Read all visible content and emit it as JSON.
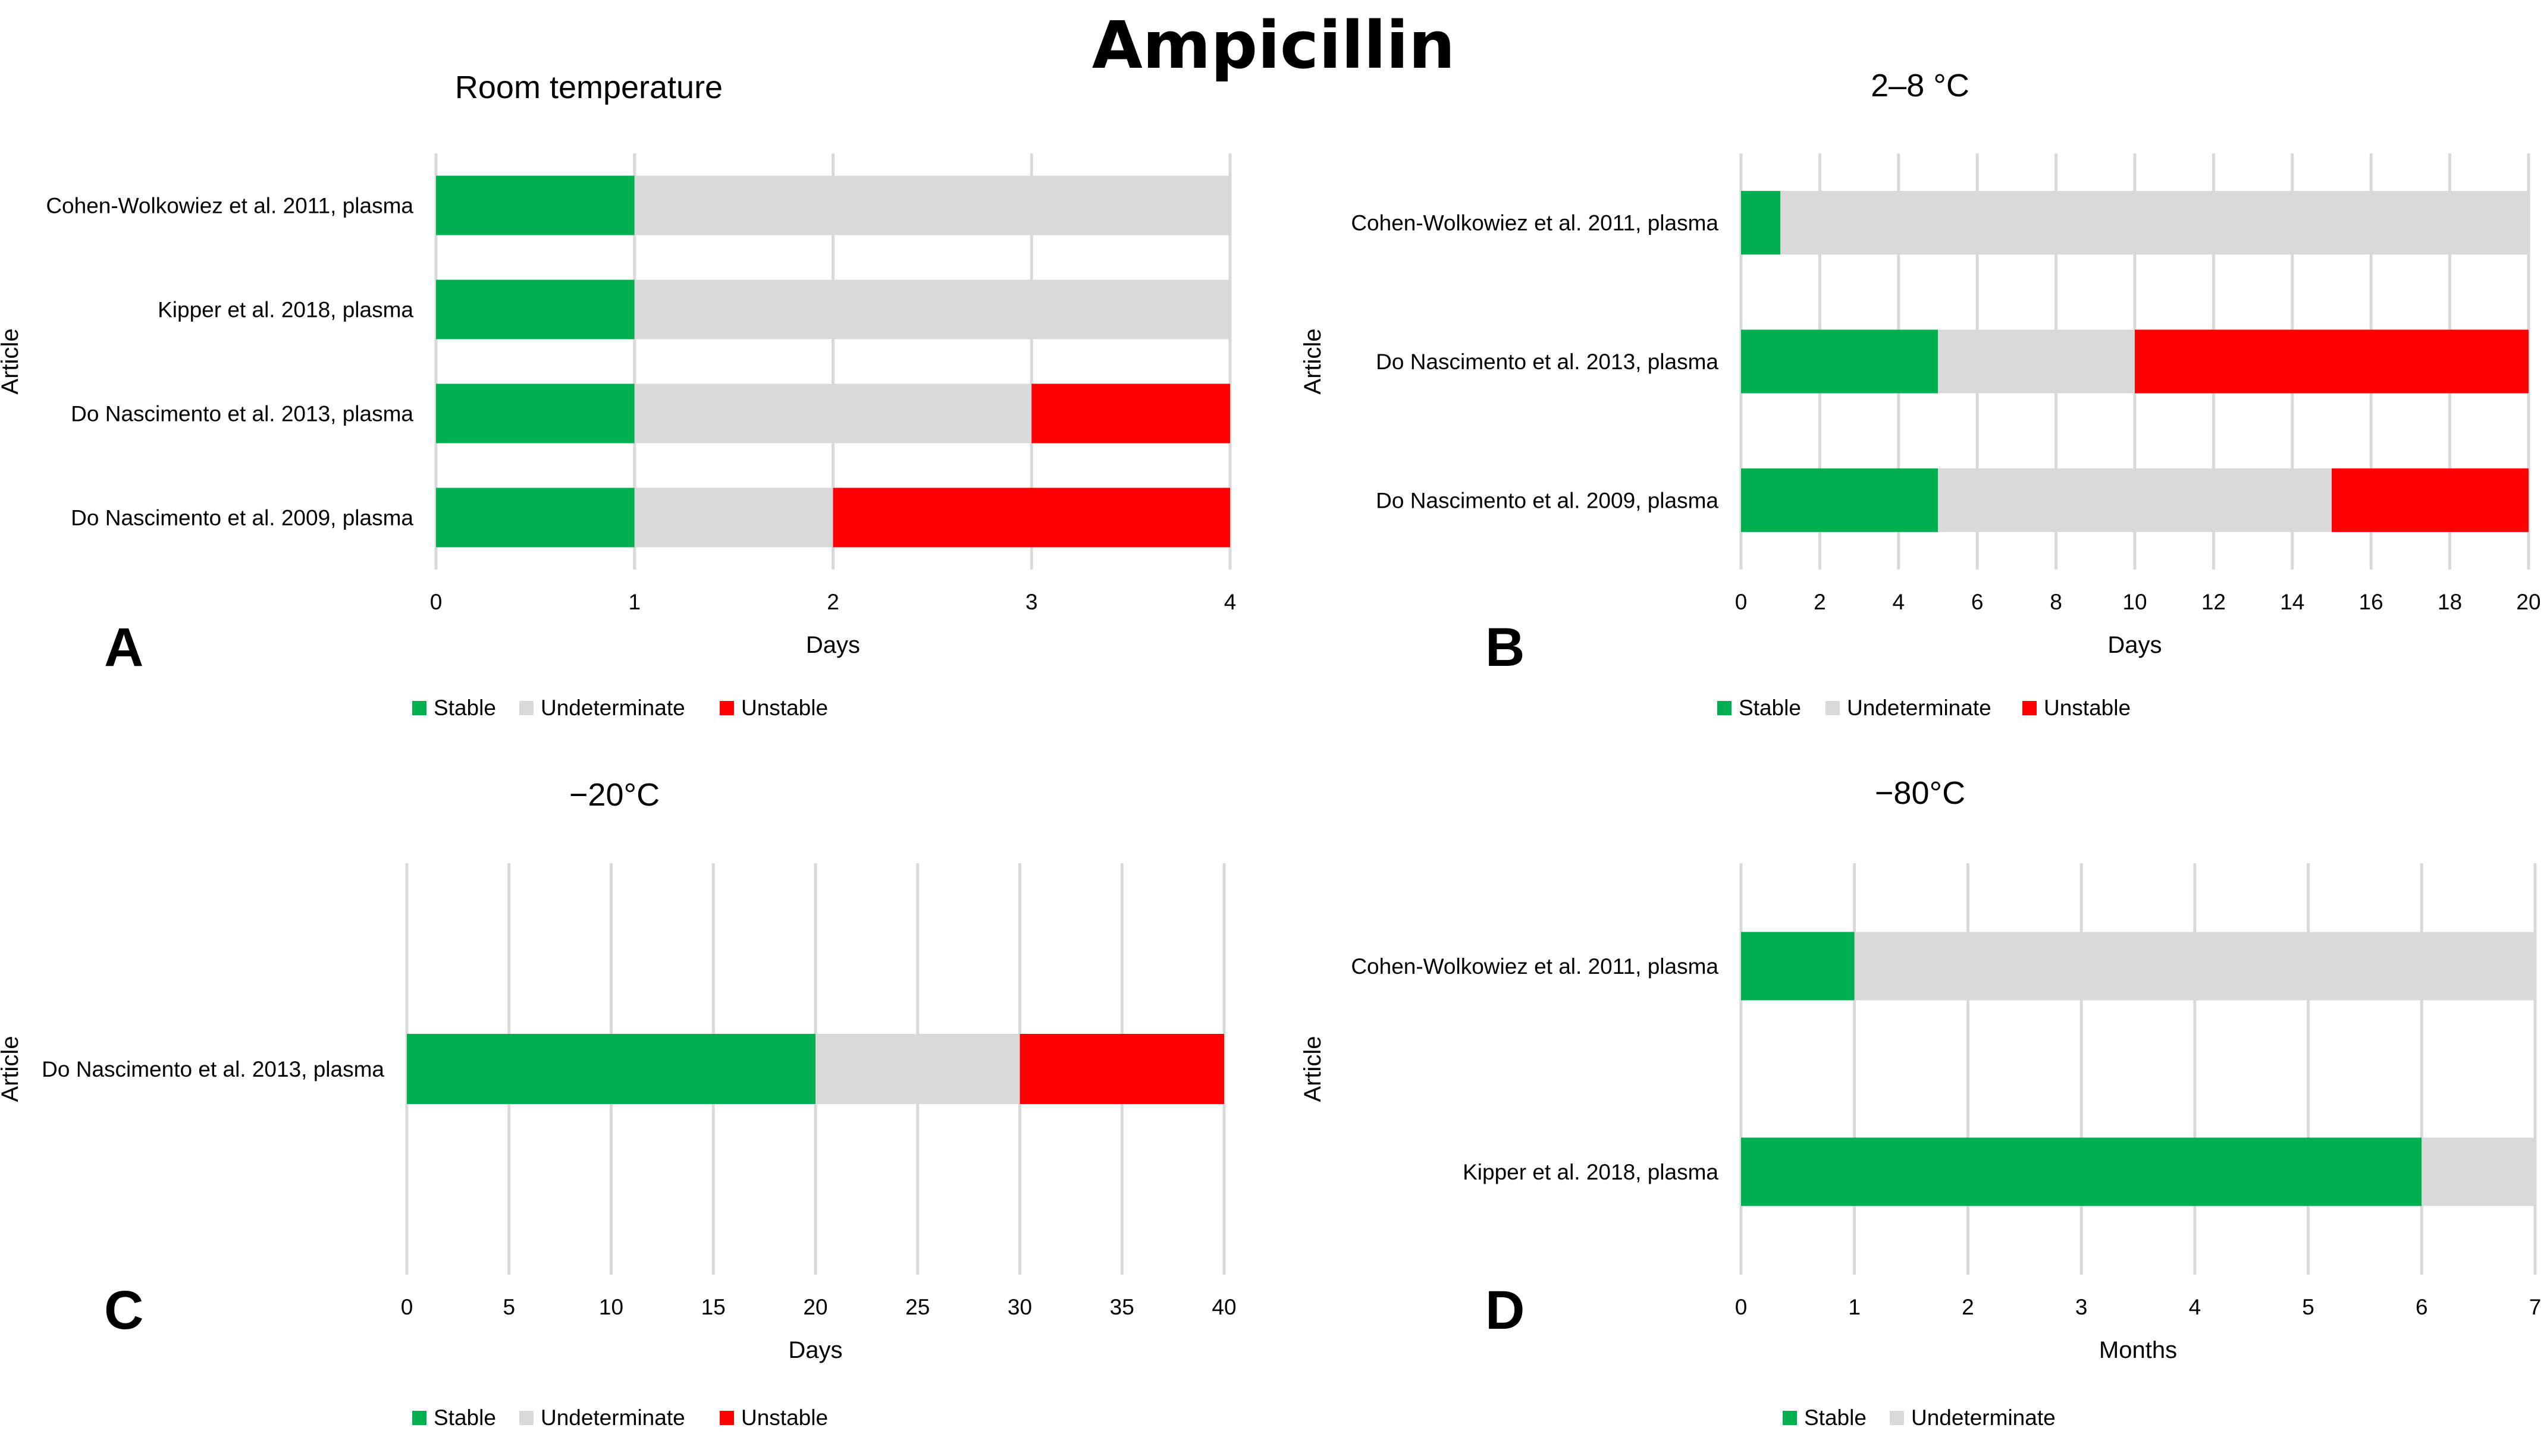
{
  "title": "Ampicillin",
  "colors": {
    "stable": "#00b050",
    "undeterminate": "#d9d9d9",
    "unstable": "#ff0000",
    "grid": "#d9d9d9"
  },
  "chart_data": [
    {
      "panel": "A",
      "type": "bar",
      "subtitle": "Room temperature",
      "xlabel": "Days",
      "ylabel": "Article",
      "xlim": [
        0,
        4
      ],
      "xticks": [
        0,
        1,
        2,
        3,
        4
      ],
      "categories": [
        "Cohen-Wolkowiez et al. 2011, plasma",
        "Kipper et al. 2018, plasma",
        "Do Nascimento et al. 2013, plasma",
        "Do Nascimento et al. 2009, plasma"
      ],
      "series": [
        {
          "name": "Stable",
          "key": "stable",
          "values": [
            1,
            1,
            1,
            1
          ]
        },
        {
          "name": "Undeterminate",
          "key": "undeterminate",
          "values": [
            3,
            3,
            2,
            1
          ]
        },
        {
          "name": "Unstable",
          "key": "unstable",
          "values": [
            0,
            0,
            1,
            2
          ]
        }
      ]
    },
    {
      "panel": "B",
      "type": "bar",
      "subtitle": "2–8 °C",
      "xlabel": "Days",
      "ylabel": "Article",
      "xlim": [
        0,
        20
      ],
      "xticks": [
        0,
        2,
        4,
        6,
        8,
        10,
        12,
        14,
        16,
        18,
        20
      ],
      "categories": [
        "Cohen-Wolkowiez et al. 2011, plasma",
        "Do Nascimento et al. 2013, plasma",
        "Do Nascimento et al. 2009, plasma"
      ],
      "series": [
        {
          "name": "Stable",
          "key": "stable",
          "values": [
            1,
            5,
            5
          ]
        },
        {
          "name": "Undeterminate",
          "key": "undeterminate",
          "values": [
            19,
            5,
            10
          ]
        },
        {
          "name": "Unstable",
          "key": "unstable",
          "values": [
            0,
            10,
            5
          ]
        }
      ]
    },
    {
      "panel": "C",
      "type": "bar",
      "subtitle": "−20°C",
      "xlabel": "Days",
      "ylabel": "Article",
      "xlim": [
        0,
        40
      ],
      "xticks": [
        0,
        5,
        10,
        15,
        20,
        25,
        30,
        35,
        40
      ],
      "categories": [
        "Do Nascimento et al. 2013, plasma"
      ],
      "series": [
        {
          "name": "Stable",
          "key": "stable",
          "values": [
            20
          ]
        },
        {
          "name": "Undeterminate",
          "key": "undeterminate",
          "values": [
            10
          ]
        },
        {
          "name": "Unstable",
          "key": "unstable",
          "values": [
            10
          ]
        }
      ]
    },
    {
      "panel": "D",
      "type": "bar",
      "subtitle": "−80°C",
      "xlabel": "Months",
      "ylabel": "Article",
      "xlim": [
        0,
        7
      ],
      "xticks": [
        0,
        1,
        2,
        3,
        4,
        5,
        6,
        7
      ],
      "categories": [
        "Cohen-Wolkowiez et al. 2011, plasma",
        "Kipper et al. 2018, plasma"
      ],
      "series": [
        {
          "name": "Stable",
          "key": "stable",
          "values": [
            1,
            6
          ]
        },
        {
          "name": "Undeterminate",
          "key": "undeterminate",
          "values": [
            6,
            1
          ]
        }
      ]
    }
  ]
}
